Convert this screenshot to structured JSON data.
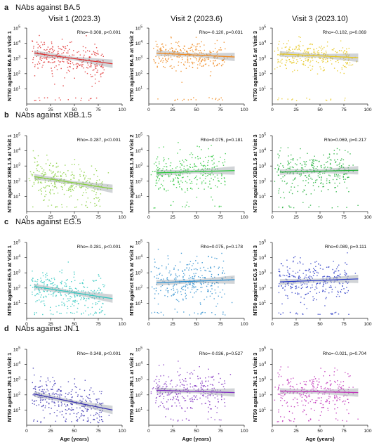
{
  "figure": {
    "columns": [
      "Visit 1 (2023.3)",
      "Visit 2 (2023.6)",
      "Visit 3 (2023.10)"
    ],
    "x_axis_label": "Age (years)",
    "x_ticks": [
      "0",
      "25",
      "50",
      "75",
      "100"
    ],
    "y_ticks": [
      "10",
      "10",
      "10",
      "10",
      "10"
    ],
    "y_tick_exponents": [
      "1",
      "2",
      "3",
      "4",
      "5"
    ],
    "rows": [
      {
        "letter": "a",
        "title": "NAbs against BA.5",
        "ylabels": [
          "NT50 against BA.5 at Visit 1",
          "NT50 against BA.5 at Visit 2",
          "NT50 against BA.5 at Visit 3"
        ],
        "stats": [
          "Rho=-0.308, p<0.001",
          "Rho=-0.120, p=0.031",
          "Rho=-0.102, p=0.069"
        ]
      },
      {
        "letter": "b",
        "title": "NAbs against XBB.1.5",
        "ylabels": [
          "NT50 against XBB.1.5 at Visit 1",
          "NT50 against XBB.1.5 at Visit 2",
          "NT50 against XBB.1.5 at Visit 3"
        ],
        "stats": [
          "Rho=-0.287, p<0.001",
          "Rho=0.075, p=0.181",
          "Rho=0.069, p=0.217"
        ]
      },
      {
        "letter": "c",
        "title": "NAbs against EG.5",
        "ylabels": [
          "NT50 against EG.5 at Visit 1",
          "NT50 against EG.5 at Visit 2",
          "NT50 against EG.5 at Visit 3"
        ],
        "stats": [
          "Rho=-0.281, p<0.001",
          "Rho=0.075, p=0.178",
          "Rho=0.089, p=0.111"
        ]
      },
      {
        "letter": "d",
        "title": "NAbs against JN.1",
        "ylabels": [
          "NT50 against JN.1 at Visit 1",
          "NT50 against JN.1 at Visit 2",
          "NT50 against JN.1 at Visit 3"
        ],
        "stats": [
          "Rho=-0.348, p<0.001",
          "Rho=-0.036, p=0.527",
          "Rho=-0.021, p=0.704"
        ]
      }
    ]
  },
  "chart_data": [
    {
      "type": "scatter",
      "panel": "a1",
      "xlim": [
        0,
        100
      ],
      "ylim_log10": [
        0,
        5
      ],
      "y_scale": "log",
      "color": "#e03030",
      "xlabel": "",
      "ylabel": "NT50 against BA.5 at Visit 1",
      "annotation": "Rho=-0.308, p<0.001",
      "fit": {
        "x": [
          8,
          90
        ],
        "y_log10": [
          3.35,
          2.65
        ]
      },
      "point_cloud": {
        "center_log10": 3.1,
        "spread_log10": 0.55,
        "points": 300
      }
    },
    {
      "type": "scatter",
      "panel": "a2",
      "xlim": [
        0,
        100
      ],
      "ylim_log10": [
        0,
        5
      ],
      "y_scale": "log",
      "color": "#f08a20",
      "xlabel": "",
      "ylabel": "NT50 against BA.5 at Visit 2",
      "annotation": "Rho=-0.120, p=0.031",
      "fit": {
        "x": [
          8,
          90
        ],
        "y_log10": [
          3.35,
          3.1
        ]
      },
      "point_cloud": {
        "center_log10": 3.3,
        "spread_log10": 0.45,
        "points": 300
      }
    },
    {
      "type": "scatter",
      "panel": "a3",
      "xlim": [
        0,
        100
      ],
      "ylim_log10": [
        0,
        5
      ],
      "y_scale": "log",
      "color": "#e8c820",
      "xlabel": "",
      "ylabel": "NT50 against BA.5 at Visit 3",
      "annotation": "Rho=-0.102, p=0.069",
      "fit": {
        "x": [
          8,
          90
        ],
        "y_log10": [
          3.3,
          3.05
        ]
      },
      "point_cloud": {
        "center_log10": 3.25,
        "spread_log10": 0.45,
        "points": 300
      }
    },
    {
      "type": "scatter",
      "panel": "b1",
      "xlim": [
        0,
        100
      ],
      "ylim_log10": [
        0,
        5
      ],
      "y_scale": "log",
      "color": "#88d040",
      "xlabel": "",
      "ylabel": "NT50 against XBB.1.5 at Visit 1",
      "annotation": "Rho=-0.287, p<0.001",
      "fit": {
        "x": [
          8,
          90
        ],
        "y_log10": [
          2.3,
          1.5
        ]
      },
      "point_cloud": {
        "center_log10": 2.0,
        "spread_log10": 0.6,
        "points": 300
      }
    },
    {
      "type": "scatter",
      "panel": "b2",
      "xlim": [
        0,
        100
      ],
      "ylim_log10": [
        0,
        5
      ],
      "y_scale": "log",
      "color": "#30c840",
      "xlabel": "",
      "ylabel": "NT50 against XBB.1.5 at Visit 2",
      "annotation": "Rho=0.075, p=0.181",
      "fit": {
        "x": [
          8,
          90
        ],
        "y_log10": [
          2.55,
          2.7
        ]
      },
      "point_cloud": {
        "center_log10": 2.6,
        "spread_log10": 0.7,
        "points": 300
      }
    },
    {
      "type": "scatter",
      "panel": "b3",
      "xlim": [
        0,
        100
      ],
      "ylim_log10": [
        0,
        5
      ],
      "y_scale": "log",
      "color": "#20b038",
      "xlabel": "",
      "ylabel": "NT50 against XBB.1.5 at Visit 3",
      "annotation": "Rho=0.069, p=0.217",
      "fit": {
        "x": [
          8,
          90
        ],
        "y_log10": [
          2.6,
          2.72
        ]
      },
      "point_cloud": {
        "center_log10": 2.6,
        "spread_log10": 0.65,
        "points": 300
      }
    },
    {
      "type": "scatter",
      "panel": "c1",
      "xlim": [
        0,
        100
      ],
      "ylim_log10": [
        0,
        5
      ],
      "y_scale": "log",
      "color": "#30c8c0",
      "xlabel": "",
      "ylabel": "NT50 against EG.5 at Visit 1",
      "annotation": "Rho=-0.281, p<0.001",
      "fit": {
        "x": [
          8,
          90
        ],
        "y_log10": [
          2.1,
          1.3
        ]
      },
      "point_cloud": {
        "center_log10": 1.8,
        "spread_log10": 0.6,
        "points": 300
      }
    },
    {
      "type": "scatter",
      "panel": "c2",
      "xlim": [
        0,
        100
      ],
      "ylim_log10": [
        0,
        5
      ],
      "y_scale": "log",
      "color": "#3090d0",
      "xlabel": "",
      "ylabel": "NT50 against EG.5 at Visit 2",
      "annotation": "Rho=0.075, p=0.178",
      "fit": {
        "x": [
          8,
          90
        ],
        "y_log10": [
          2.35,
          2.55
        ]
      },
      "point_cloud": {
        "center_log10": 2.4,
        "spread_log10": 0.7,
        "points": 300
      }
    },
    {
      "type": "scatter",
      "panel": "c3",
      "xlim": [
        0,
        100
      ],
      "ylim_log10": [
        0,
        5
      ],
      "y_scale": "log",
      "color": "#3040c8",
      "xlabel": "",
      "ylabel": "NT50 against EG.5 at Visit 3",
      "annotation": "Rho=0.089, p=0.111",
      "fit": {
        "x": [
          8,
          90
        ],
        "y_log10": [
          2.4,
          2.6
        ]
      },
      "point_cloud": {
        "center_log10": 2.45,
        "spread_log10": 0.65,
        "points": 300
      }
    },
    {
      "type": "scatter",
      "panel": "d1",
      "xlim": [
        0,
        100
      ],
      "ylim_log10": [
        0,
        5
      ],
      "y_scale": "log",
      "color": "#3830b0",
      "xlabel": "Age (years)",
      "ylabel": "NT50 against JN.1 at Visit 1",
      "annotation": "Rho=-0.348, p<0.001",
      "fit": {
        "x": [
          8,
          90
        ],
        "y_log10": [
          2.05,
          1.0
        ]
      },
      "point_cloud": {
        "center_log10": 1.6,
        "spread_log10": 0.6,
        "points": 300
      }
    },
    {
      "type": "scatter",
      "panel": "d2",
      "xlim": [
        0,
        100
      ],
      "ylim_log10": [
        0,
        5
      ],
      "y_scale": "log",
      "color": "#8030c0",
      "xlabel": "Age (years)",
      "ylabel": "NT50 against JN.1 at Visit 2",
      "annotation": "Rho=-0.036, p=0.527",
      "fit": {
        "x": [
          8,
          90
        ],
        "y_log10": [
          2.3,
          2.15
        ]
      },
      "point_cloud": {
        "center_log10": 2.2,
        "spread_log10": 0.7,
        "points": 300
      }
    },
    {
      "type": "scatter",
      "panel": "d3",
      "xlim": [
        0,
        100
      ],
      "ylim_log10": [
        0,
        5
      ],
      "y_scale": "log",
      "color": "#c030b8",
      "xlabel": "Age (years)",
      "ylabel": "NT50 against JN.1 at Visit 3",
      "annotation": "Rho=-0.021, p=0.704",
      "fit": {
        "x": [
          8,
          90
        ],
        "y_log10": [
          2.25,
          2.15
        ]
      },
      "point_cloud": {
        "center_log10": 2.2,
        "spread_log10": 0.65,
        "points": 300
      }
    }
  ]
}
